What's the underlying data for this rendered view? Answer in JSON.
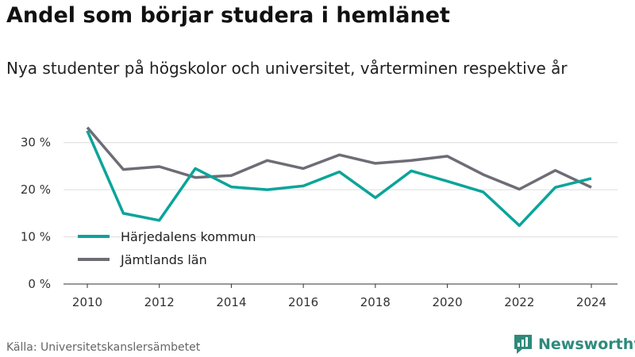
{
  "chart_data": {
    "type": "line",
    "title": "Andel som börjar studera i hemlänet",
    "subtitle": "Nya studenter på högskolor och universitet, vårterminen respektive år",
    "x": [
      2010,
      2011,
      2012,
      2013,
      2014,
      2015,
      2016,
      2017,
      2018,
      2019,
      2020,
      2021,
      2022,
      2023,
      2024
    ],
    "series": [
      {
        "name": "Härjedalens kommun",
        "color": "#0aa49a",
        "values": [
          32.5,
          15.0,
          13.5,
          24.5,
          20.6,
          20.0,
          20.8,
          23.8,
          18.3,
          24.0,
          21.8,
          19.5,
          12.4,
          20.5,
          22.4
        ]
      },
      {
        "name": "Jämtlands län",
        "color": "#6e6c75",
        "values": [
          33.2,
          24.3,
          24.9,
          22.6,
          23.0,
          26.2,
          24.5,
          27.4,
          25.6,
          26.2,
          27.1,
          23.2,
          20.1,
          24.1,
          20.5
        ]
      }
    ],
    "ylim": [
      0,
      35
    ],
    "xlim": [
      2010,
      2024
    ],
    "yticks": [
      {
        "value": 0,
        "label": "0 %"
      },
      {
        "value": 10,
        "label": "10 %"
      },
      {
        "value": 20,
        "label": "20 %"
      },
      {
        "value": 30,
        "label": "30 %"
      }
    ],
    "xticks": [
      {
        "value": 2010,
        "label": "2010"
      },
      {
        "value": 2012,
        "label": "2012"
      },
      {
        "value": 2014,
        "label": "2014"
      },
      {
        "value": 2016,
        "label": "2016"
      },
      {
        "value": 2018,
        "label": "2018"
      },
      {
        "value": 2020,
        "label": "2020"
      },
      {
        "value": 2022,
        "label": "2022"
      },
      {
        "value": 2024,
        "label": "2024"
      }
    ],
    "grid": true,
    "legend_position": "bottom-left"
  },
  "source": "Källa: Universitetskanslersämbetet",
  "brand": {
    "name": "Newsworthy",
    "color": "#2f8a7c",
    "icon": "newsworthy-logo-icon"
  }
}
